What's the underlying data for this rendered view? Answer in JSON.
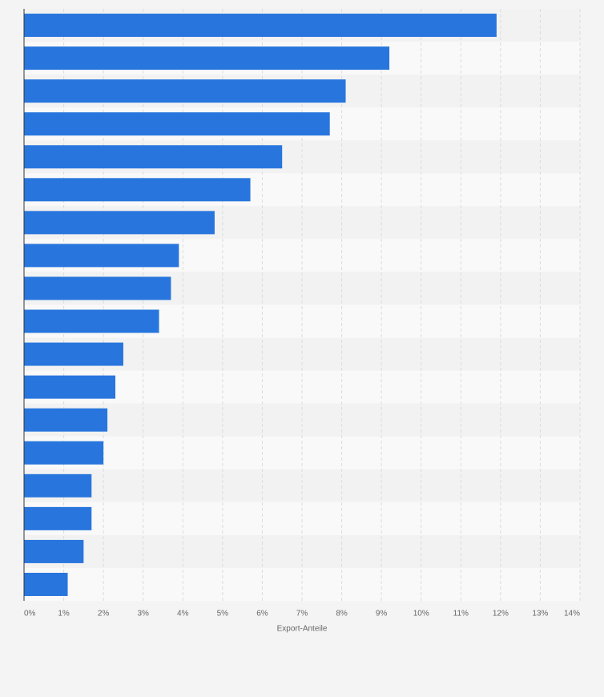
{
  "chart_data": {
    "type": "hbar",
    "x_label": "Export-Anteile",
    "categories": [
      null,
      null,
      null,
      null,
      null,
      null,
      null,
      null,
      null,
      null,
      null,
      null,
      null,
      null,
      null,
      null,
      null,
      null
    ],
    "values": [
      11.9,
      9.2,
      8.1,
      7.7,
      6.5,
      5.7,
      4.8,
      3.9,
      3.7,
      3.4,
      2.5,
      2.3,
      2.1,
      2.0,
      1.7,
      1.7,
      1.5,
      1.1
    ],
    "color": "#2876dd",
    "xlim": [
      0,
      14
    ],
    "xticks": [
      {
        "value": 0,
        "label": "0%"
      },
      {
        "value": 1,
        "label": "1%"
      },
      {
        "value": 2,
        "label": "2%"
      },
      {
        "value": 3,
        "label": "3%"
      },
      {
        "value": 4,
        "label": "4%"
      },
      {
        "value": 5,
        "label": "5%"
      },
      {
        "value": 6,
        "label": "6%"
      },
      {
        "value": 7,
        "label": "7%"
      },
      {
        "value": 8,
        "label": "8%"
      },
      {
        "value": 9,
        "label": "9%"
      },
      {
        "value": 10,
        "label": "10%"
      },
      {
        "value": 11,
        "label": "11%"
      },
      {
        "value": 12,
        "label": "12%"
      },
      {
        "value": 13,
        "label": "13%"
      },
      {
        "value": 14,
        "label": "14%"
      }
    ],
    "grid": true
  }
}
